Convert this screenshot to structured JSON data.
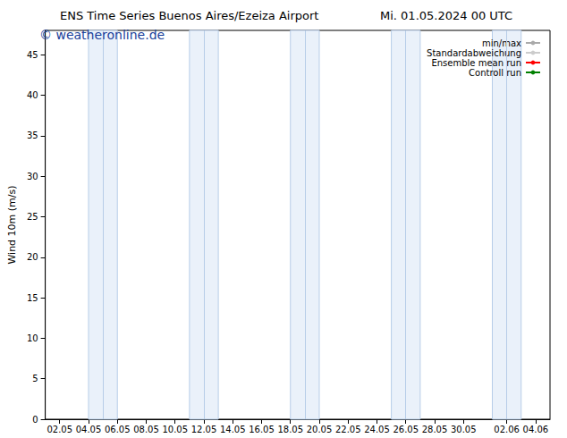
{
  "chart_data": {
    "type": "line",
    "title": "ENS Time Series Buenos Aires/Ezeiza Airport",
    "subtitle": "Mi. 01.05.2024 00 UTC",
    "annotations": [
      "© weatheronline.de"
    ],
    "y_label": "Wind 10m (m/s)",
    "categories": [
      null,
      "02.05",
      null,
      "04.05",
      null,
      "06.05",
      null,
      "08.05",
      null,
      "10.05",
      null,
      "12.05",
      null,
      "14.05",
      null,
      "16.05",
      null,
      "18.05",
      null,
      "20.05",
      null,
      "22.05",
      null,
      "24.05",
      null,
      "26.05",
      null,
      "28.05",
      null,
      "30.05",
      null,
      null,
      "02.06",
      null,
      "04.06",
      null
    ],
    "shaded": [
      [
        3,
        5
      ],
      [
        10,
        12
      ],
      [
        17,
        19
      ],
      [
        24,
        26
      ],
      [
        31,
        33
      ]
    ],
    "series": [
      {
        "name": "min/max",
        "color": "#aaaaaa",
        "values": [
          null,
          null,
          null,
          null,
          null,
          null,
          null,
          null,
          null,
          null,
          null,
          null,
          null,
          null,
          null,
          null,
          null,
          null,
          null,
          null,
          null,
          null,
          null,
          null,
          null,
          null,
          null,
          null,
          null,
          null,
          null,
          null,
          null,
          null,
          null,
          null
        ]
      },
      {
        "name": "Standardabweichung",
        "color": "#cccccc",
        "values": [
          null,
          null,
          null,
          null,
          null,
          null,
          null,
          null,
          null,
          null,
          null,
          null,
          null,
          null,
          null,
          null,
          null,
          null,
          null,
          null,
          null,
          null,
          null,
          null,
          null,
          null,
          null,
          null,
          null,
          null,
          null,
          null,
          null,
          null,
          null,
          null
        ]
      },
      {
        "name": "Ensemble mean run",
        "color": "#ff0000",
        "values": [
          null,
          null,
          null,
          null,
          null,
          null,
          null,
          null,
          null,
          null,
          null,
          null,
          null,
          null,
          null,
          null,
          null,
          null,
          null,
          null,
          null,
          null,
          null,
          null,
          null,
          null,
          null,
          null,
          null,
          null,
          null,
          null,
          null,
          null,
          null,
          null
        ]
      },
      {
        "name": "Controll run",
        "color": "#008000",
        "values": [
          null,
          null,
          null,
          null,
          null,
          null,
          null,
          null,
          null,
          null,
          null,
          null,
          null,
          null,
          null,
          null,
          null,
          null,
          null,
          null,
          null,
          null,
          null,
          null,
          null,
          null,
          null,
          null,
          null,
          null,
          null,
          null,
          null,
          null,
          null,
          null
        ]
      }
    ],
    "ylim": [
      0,
      48
    ],
    "yticks": [
      0,
      5,
      10,
      15,
      20,
      25,
      30,
      35,
      40,
      45
    ],
    "grid": false,
    "legend": "upper right"
  }
}
